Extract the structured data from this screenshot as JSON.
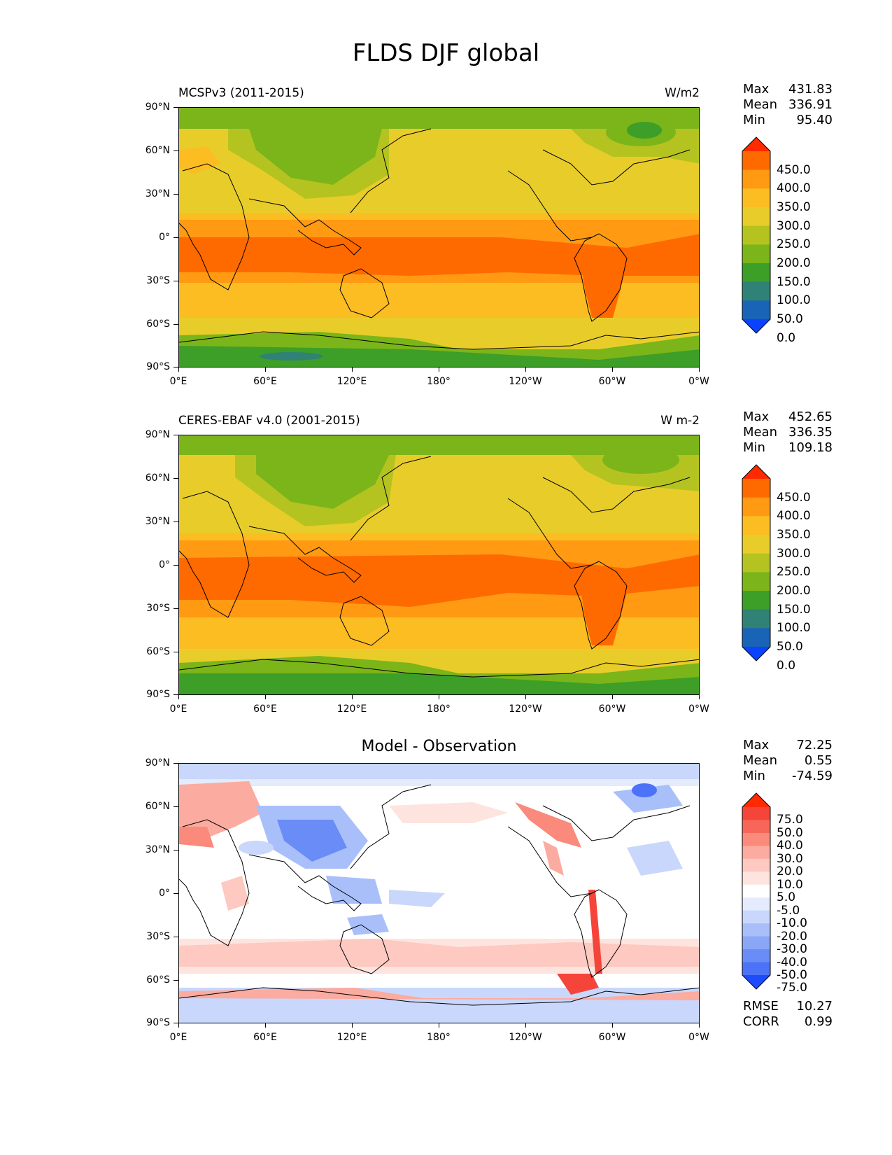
{
  "figure_title": "FLDS DJF global",
  "x_ticks": [
    "0°E",
    "60°E",
    "120°E",
    "180°",
    "120°W",
    "60°W",
    "0°W"
  ],
  "y_ticks": [
    "90°N",
    "60°N",
    "30°N",
    "0°",
    "30°S",
    "60°S",
    "90°S"
  ],
  "panels": [
    {
      "title_left": "MCSPv3 (2011-2015)",
      "title_right": "W/m2",
      "title_center": "",
      "stats": {
        "max_label": "Max",
        "max": "431.83",
        "mean_label": "Mean",
        "mean": "336.91",
        "min_label": "Min",
        "min": "95.40"
      },
      "colorbar": {
        "labels": [
          "450.0",
          "400.0",
          "350.0",
          "300.0",
          "250.0",
          "200.0",
          "150.0",
          "100.0",
          "50.0",
          "0.0"
        ],
        "colors": [
          "#ff2a00",
          "#ff6a00",
          "#ff9a12",
          "#fbbd22",
          "#e8cd2a",
          "#b5c320",
          "#7bb51a",
          "#3d9e28",
          "#2f8275",
          "#1a64b8",
          "#0a43ff"
        ]
      }
    },
    {
      "title_left": "CERES-EBAF v4.0 (2001-2015)",
      "title_right": "W m-2",
      "title_center": "",
      "stats": {
        "max_label": "Max",
        "max": "452.65",
        "mean_label": "Mean",
        "mean": "336.35",
        "min_label": "Min",
        "min": "109.18"
      },
      "colorbar": {
        "labels": [
          "450.0",
          "400.0",
          "350.0",
          "300.0",
          "250.0",
          "200.0",
          "150.0",
          "100.0",
          "50.0",
          "0.0"
        ],
        "colors": [
          "#ff2a00",
          "#ff6a00",
          "#ff9a12",
          "#fbbd22",
          "#e8cd2a",
          "#b5c320",
          "#7bb51a",
          "#3d9e28",
          "#2f8275",
          "#1a64b8",
          "#0a43ff"
        ]
      }
    },
    {
      "title_left": "",
      "title_right": "",
      "title_center": "Model - Observation",
      "stats": {
        "max_label": "Max",
        "max": "72.25",
        "mean_label": "Mean",
        "mean": "0.55",
        "min_label": "Min",
        "min": "-74.59"
      },
      "colorbar": {
        "labels": [
          "75.0",
          "50.0",
          "40.0",
          "30.0",
          "20.0",
          "10.0",
          "5.0",
          "-5.0",
          "-10.0",
          "-20.0",
          "-30.0",
          "-40.0",
          "-50.0",
          "-75.0"
        ],
        "colors": [
          "#ff2a00",
          "#f5443a",
          "#f76658",
          "#f98a7c",
          "#fbab9f",
          "#fdc9c0",
          "#fee4de",
          "#ffffff",
          "#e3ebfc",
          "#c8d7fb",
          "#a9bffa",
          "#8aa6f7",
          "#6a8cf6",
          "#4c72f7",
          "#1f4bff"
        ]
      },
      "metrics": {
        "rmse_label": "RMSE",
        "rmse": "10.27",
        "corr_label": "CORR",
        "corr": "0.99"
      }
    }
  ]
}
